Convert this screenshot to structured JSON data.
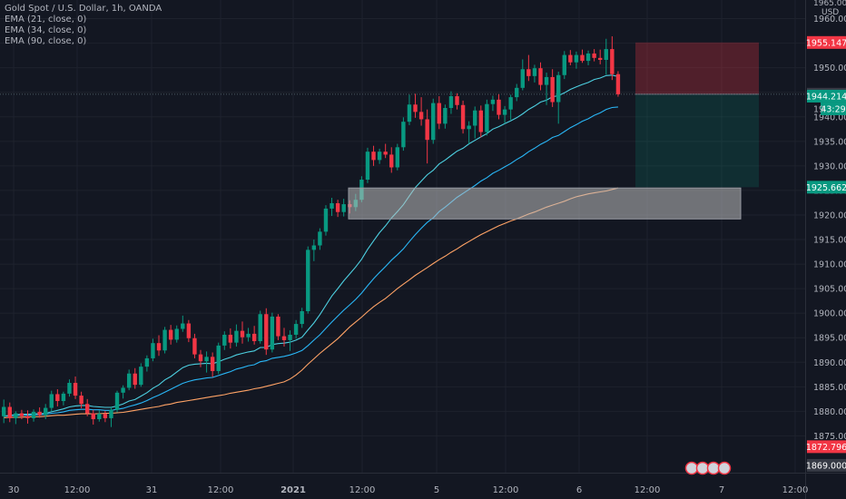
{
  "chart_data": {
    "type": "candlestick",
    "title": "Gold Spot / U.S. Dollar, 1h, OANDA",
    "indicators": [
      "EMA (21, close, 0)",
      "EMA (34, close, 0)",
      "EMA (90, close, 0)"
    ],
    "currency": "USD",
    "ylim": [
      1867.5,
      1963.8
    ],
    "y_ticks": [
      1875,
      1880,
      1885,
      1890,
      1895,
      1900,
      1905,
      1910,
      1915,
      1920,
      1925,
      1930,
      1935,
      1940,
      1945,
      1950,
      1955,
      1960
    ],
    "top_tick_label": "1965.00",
    "x_tick_labels": [
      "30",
      "12:00",
      "31",
      "12:00",
      "2021",
      "12:00",
      "5",
      "12:00",
      "6",
      "12:00",
      "7",
      "12:00"
    ],
    "price_tags": [
      {
        "value": 1955.147,
        "label": "1955.147",
        "color": "#f23645"
      },
      {
        "value": 1944.61,
        "label": "1944.610",
        "color": "#363a45"
      },
      {
        "value": 1944.214,
        "label": "1944.214",
        "color": "#089981"
      },
      {
        "value": 1925.662,
        "label": "1925.662",
        "color": "#089981"
      },
      {
        "value": 1872.796,
        "label": "1872.796",
        "color": "#f23645"
      },
      {
        "value": 1869.0,
        "label": "1869.000",
        "color": "#363a45"
      }
    ],
    "countdown": "43:29",
    "countdown_partial": "19",
    "zone_box": {
      "top": 1925.5,
      "bottom": 1919.2
    },
    "position": {
      "entry": 1944.61,
      "stop": 1955.147,
      "target": 1925.662
    },
    "candles": [
      {
        "o": 1879.0,
        "h": 1882.4,
        "l": 1877.6,
        "c": 1880.9
      },
      {
        "o": 1880.9,
        "h": 1881.8,
        "l": 1877.8,
        "c": 1878.6
      },
      {
        "o": 1878.6,
        "h": 1880.0,
        "l": 1877.4,
        "c": 1879.6
      },
      {
        "o": 1879.6,
        "h": 1880.3,
        "l": 1878.4,
        "c": 1879.0
      },
      {
        "o": 1879.0,
        "h": 1880.2,
        "l": 1877.5,
        "c": 1878.6
      },
      {
        "o": 1878.6,
        "h": 1880.4,
        "l": 1877.9,
        "c": 1879.9
      },
      {
        "o": 1879.9,
        "h": 1880.8,
        "l": 1878.7,
        "c": 1879.2
      },
      {
        "o": 1879.2,
        "h": 1881.5,
        "l": 1878.4,
        "c": 1880.7
      },
      {
        "o": 1880.7,
        "h": 1884.2,
        "l": 1880.0,
        "c": 1883.5
      },
      {
        "o": 1883.5,
        "h": 1884.5,
        "l": 1881.0,
        "c": 1882.1
      },
      {
        "o": 1882.1,
        "h": 1884.0,
        "l": 1881.2,
        "c": 1883.6
      },
      {
        "o": 1883.6,
        "h": 1886.5,
        "l": 1883.0,
        "c": 1885.8
      },
      {
        "o": 1885.8,
        "h": 1887.1,
        "l": 1882.5,
        "c": 1883.2
      },
      {
        "o": 1883.2,
        "h": 1884.0,
        "l": 1880.6,
        "c": 1881.5
      },
      {
        "o": 1881.5,
        "h": 1882.5,
        "l": 1879.0,
        "c": 1879.6
      },
      {
        "o": 1879.6,
        "h": 1880.3,
        "l": 1877.3,
        "c": 1878.4
      },
      {
        "o": 1878.4,
        "h": 1880.2,
        "l": 1877.9,
        "c": 1879.5
      },
      {
        "o": 1879.5,
        "h": 1880.1,
        "l": 1877.8,
        "c": 1878.6
      },
      {
        "o": 1878.6,
        "h": 1881.0,
        "l": 1876.8,
        "c": 1880.3
      },
      {
        "o": 1880.3,
        "h": 1884.2,
        "l": 1879.8,
        "c": 1883.8
      },
      {
        "o": 1883.8,
        "h": 1885.3,
        "l": 1882.6,
        "c": 1884.8
      },
      {
        "o": 1884.8,
        "h": 1888.5,
        "l": 1884.3,
        "c": 1887.7
      },
      {
        "o": 1887.7,
        "h": 1888.8,
        "l": 1884.6,
        "c": 1885.4
      },
      {
        "o": 1885.4,
        "h": 1889.8,
        "l": 1885.0,
        "c": 1889.1
      },
      {
        "o": 1889.1,
        "h": 1891.4,
        "l": 1888.1,
        "c": 1890.8
      },
      {
        "o": 1890.8,
        "h": 1894.8,
        "l": 1890.2,
        "c": 1893.9
      },
      {
        "o": 1893.9,
        "h": 1895.5,
        "l": 1891.3,
        "c": 1892.4
      },
      {
        "o": 1892.4,
        "h": 1897.2,
        "l": 1891.8,
        "c": 1896.6
      },
      {
        "o": 1896.6,
        "h": 1897.6,
        "l": 1893.6,
        "c": 1894.6
      },
      {
        "o": 1894.6,
        "h": 1897.5,
        "l": 1894.0,
        "c": 1896.8
      },
      {
        "o": 1896.8,
        "h": 1899.5,
        "l": 1896.2,
        "c": 1897.9
      },
      {
        "o": 1897.9,
        "h": 1898.6,
        "l": 1894.1,
        "c": 1894.9
      },
      {
        "o": 1894.9,
        "h": 1895.8,
        "l": 1890.8,
        "c": 1891.6
      },
      {
        "o": 1891.6,
        "h": 1892.5,
        "l": 1889.0,
        "c": 1890.2
      },
      {
        "o": 1890.2,
        "h": 1892.2,
        "l": 1887.9,
        "c": 1891.1
      },
      {
        "o": 1891.1,
        "h": 1892.0,
        "l": 1887.0,
        "c": 1888.2
      },
      {
        "o": 1888.2,
        "h": 1894.0,
        "l": 1887.6,
        "c": 1893.4
      },
      {
        "o": 1893.4,
        "h": 1896.3,
        "l": 1892.5,
        "c": 1895.6
      },
      {
        "o": 1895.6,
        "h": 1896.9,
        "l": 1892.8,
        "c": 1894.0
      },
      {
        "o": 1894.0,
        "h": 1897.7,
        "l": 1893.2,
        "c": 1896.4
      },
      {
        "o": 1896.4,
        "h": 1898.3,
        "l": 1893.8,
        "c": 1895.1
      },
      {
        "o": 1895.1,
        "h": 1897.0,
        "l": 1894.2,
        "c": 1895.8
      },
      {
        "o": 1895.8,
        "h": 1897.4,
        "l": 1893.6,
        "c": 1894.3
      },
      {
        "o": 1894.3,
        "h": 1900.5,
        "l": 1893.8,
        "c": 1899.8
      },
      {
        "o": 1899.8,
        "h": 1901.0,
        "l": 1891.5,
        "c": 1892.6
      },
      {
        "o": 1892.6,
        "h": 1900.1,
        "l": 1892.0,
        "c": 1899.3
      },
      {
        "o": 1899.3,
        "h": 1899.8,
        "l": 1894.5,
        "c": 1895.3
      },
      {
        "o": 1895.3,
        "h": 1897.0,
        "l": 1893.2,
        "c": 1894.5
      },
      {
        "o": 1894.5,
        "h": 1896.5,
        "l": 1892.3,
        "c": 1895.6
      },
      {
        "o": 1895.6,
        "h": 1898.6,
        "l": 1894.8,
        "c": 1897.8
      },
      {
        "o": 1897.8,
        "h": 1901.1,
        "l": 1897.0,
        "c": 1900.4
      },
      {
        "o": 1900.4,
        "h": 1913.6,
        "l": 1899.9,
        "c": 1912.9
      },
      {
        "o": 1912.9,
        "h": 1915.0,
        "l": 1910.6,
        "c": 1913.8
      },
      {
        "o": 1913.8,
        "h": 1917.3,
        "l": 1912.9,
        "c": 1916.6
      },
      {
        "o": 1916.6,
        "h": 1922.0,
        "l": 1915.8,
        "c": 1921.3
      },
      {
        "o": 1921.3,
        "h": 1923.5,
        "l": 1919.8,
        "c": 1922.4
      },
      {
        "o": 1922.4,
        "h": 1923.1,
        "l": 1919.6,
        "c": 1920.6
      },
      {
        "o": 1920.6,
        "h": 1923.3,
        "l": 1919.7,
        "c": 1922.2
      },
      {
        "o": 1922.2,
        "h": 1923.0,
        "l": 1920.3,
        "c": 1921.6
      },
      {
        "o": 1921.6,
        "h": 1924.3,
        "l": 1920.8,
        "c": 1923.1
      },
      {
        "o": 1923.1,
        "h": 1927.9,
        "l": 1922.6,
        "c": 1927.2
      },
      {
        "o": 1927.2,
        "h": 1933.7,
        "l": 1926.5,
        "c": 1932.9
      },
      {
        "o": 1932.9,
        "h": 1934.1,
        "l": 1930.0,
        "c": 1931.2
      },
      {
        "o": 1931.2,
        "h": 1933.5,
        "l": 1930.4,
        "c": 1932.9
      },
      {
        "o": 1932.9,
        "h": 1934.5,
        "l": 1931.6,
        "c": 1932.3
      },
      {
        "o": 1932.3,
        "h": 1933.8,
        "l": 1928.6,
        "c": 1929.7
      },
      {
        "o": 1929.7,
        "h": 1934.5,
        "l": 1929.1,
        "c": 1933.8
      },
      {
        "o": 1933.8,
        "h": 1939.9,
        "l": 1933.1,
        "c": 1939.0
      },
      {
        "o": 1939.0,
        "h": 1944.5,
        "l": 1938.3,
        "c": 1942.5
      },
      {
        "o": 1942.5,
        "h": 1944.7,
        "l": 1939.8,
        "c": 1941.0
      },
      {
        "o": 1941.0,
        "h": 1944.0,
        "l": 1938.2,
        "c": 1939.5
      },
      {
        "o": 1939.5,
        "h": 1941.5,
        "l": 1930.5,
        "c": 1935.3
      },
      {
        "o": 1935.3,
        "h": 1943.7,
        "l": 1934.5,
        "c": 1942.8
      },
      {
        "o": 1942.8,
        "h": 1944.2,
        "l": 1937.5,
        "c": 1938.6
      },
      {
        "o": 1938.6,
        "h": 1942.5,
        "l": 1937.6,
        "c": 1941.8
      },
      {
        "o": 1941.8,
        "h": 1945.2,
        "l": 1940.6,
        "c": 1944.2
      },
      {
        "o": 1944.2,
        "h": 1944.8,
        "l": 1941.5,
        "c": 1942.4
      },
      {
        "o": 1942.4,
        "h": 1943.3,
        "l": 1936.6,
        "c": 1937.5
      },
      {
        "o": 1937.5,
        "h": 1939.1,
        "l": 1934.5,
        "c": 1938.2
      },
      {
        "o": 1938.2,
        "h": 1942.1,
        "l": 1935.6,
        "c": 1941.3
      },
      {
        "o": 1941.3,
        "h": 1942.3,
        "l": 1935.8,
        "c": 1936.9
      },
      {
        "o": 1936.9,
        "h": 1943.5,
        "l": 1936.2,
        "c": 1942.6
      },
      {
        "o": 1942.6,
        "h": 1944.3,
        "l": 1941.2,
        "c": 1943.5
      },
      {
        "o": 1943.5,
        "h": 1944.6,
        "l": 1939.5,
        "c": 1940.4
      },
      {
        "o": 1940.4,
        "h": 1942.2,
        "l": 1938.6,
        "c": 1941.5
      },
      {
        "o": 1941.5,
        "h": 1944.5,
        "l": 1939.4,
        "c": 1944.0
      },
      {
        "o": 1944.0,
        "h": 1946.7,
        "l": 1943.2,
        "c": 1945.9
      },
      {
        "o": 1945.9,
        "h": 1951.7,
        "l": 1945.4,
        "c": 1949.7
      },
      {
        "o": 1949.7,
        "h": 1952.6,
        "l": 1947.3,
        "c": 1948.3
      },
      {
        "o": 1948.3,
        "h": 1950.6,
        "l": 1947.0,
        "c": 1949.9
      },
      {
        "o": 1949.9,
        "h": 1951.1,
        "l": 1945.4,
        "c": 1946.5
      },
      {
        "o": 1946.5,
        "h": 1949.0,
        "l": 1942.4,
        "c": 1948.1
      },
      {
        "o": 1948.1,
        "h": 1949.7,
        "l": 1942.0,
        "c": 1943.0
      },
      {
        "o": 1943.0,
        "h": 1949.2,
        "l": 1938.6,
        "c": 1948.5
      },
      {
        "o": 1948.5,
        "h": 1953.4,
        "l": 1947.7,
        "c": 1952.6
      },
      {
        "o": 1952.6,
        "h": 1953.6,
        "l": 1950.5,
        "c": 1951.1
      },
      {
        "o": 1951.1,
        "h": 1953.3,
        "l": 1949.8,
        "c": 1952.6
      },
      {
        "o": 1952.6,
        "h": 1953.7,
        "l": 1951.0,
        "c": 1951.4
      },
      {
        "o": 1951.4,
        "h": 1953.5,
        "l": 1950.5,
        "c": 1952.9
      },
      {
        "o": 1952.9,
        "h": 1953.8,
        "l": 1951.3,
        "c": 1952.0
      },
      {
        "o": 1952.0,
        "h": 1953.7,
        "l": 1950.7,
        "c": 1951.6
      },
      {
        "o": 1951.6,
        "h": 1955.9,
        "l": 1948.6,
        "c": 1953.8
      },
      {
        "o": 1953.8,
        "h": 1956.4,
        "l": 1947.5,
        "c": 1948.7
      },
      {
        "o": 1948.7,
        "h": 1949.3,
        "l": 1944.1,
        "c": 1944.6
      }
    ],
    "ema21": [
      1879.0,
      1879.2,
      1879.3,
      1879.4,
      1879.4,
      1879.5,
      1879.5,
      1879.6,
      1879.9,
      1880.2,
      1880.5,
      1880.9,
      1881.1,
      1881.2,
      1881.2,
      1881.0,
      1880.9,
      1880.8,
      1880.8,
      1881.1,
      1881.5,
      1882.1,
      1882.4,
      1883.1,
      1883.8,
      1884.7,
      1885.4,
      1886.4,
      1887.1,
      1888.0,
      1888.9,
      1889.4,
      1889.6,
      1889.7,
      1889.8,
      1889.7,
      1890.1,
      1890.6,
      1891.0,
      1891.5,
      1891.8,
      1892.1,
      1892.3,
      1893.0,
      1893.0,
      1893.6,
      1893.8,
      1893.9,
      1894.1,
      1894.5,
      1895.1,
      1896.6,
      1898.0,
      1899.7,
      1901.6,
      1903.5,
      1905.0,
      1906.6,
      1908.0,
      1909.4,
      1911.0,
      1913.0,
      1914.7,
      1916.4,
      1917.8,
      1919.4,
      1920.7,
      1922.1,
      1923.9,
      1925.6,
      1926.9,
      1928.2,
      1929.1,
      1930.4,
      1931.2,
      1932.1,
      1933.0,
      1933.6,
      1934.5,
      1935.2,
      1935.9,
      1936.6,
      1937.5,
      1938.0,
      1938.6,
      1939.2,
      1939.8,
      1940.6,
      1941.5,
      1942.2,
      1943.0,
      1943.4,
      1944.1,
      1944.3,
      1944.9,
      1945.6,
      1946.1,
      1946.6,
      1947.0,
      1947.6,
      1947.9,
      1948.4,
      1948.5,
      1948.2
    ],
    "ema34": [
      1879.0,
      1879.1,
      1879.2,
      1879.2,
      1879.2,
      1879.3,
      1879.3,
      1879.4,
      1879.6,
      1879.7,
      1879.9,
      1880.2,
      1880.3,
      1880.4,
      1880.4,
      1880.3,
      1880.3,
      1880.2,
      1880.2,
      1880.4,
      1880.6,
      1881.0,
      1881.3,
      1881.7,
      1882.2,
      1882.8,
      1883.3,
      1883.9,
      1884.5,
      1885.1,
      1885.7,
      1886.1,
      1886.4,
      1886.6,
      1886.8,
      1886.9,
      1887.3,
      1887.7,
      1888.1,
      1888.6,
      1888.9,
      1889.3,
      1889.5,
      1890.1,
      1890.3,
      1890.8,
      1891.0,
      1891.2,
      1891.5,
      1891.9,
      1892.4,
      1893.4,
      1894.5,
      1895.6,
      1896.9,
      1898.2,
      1899.4,
      1900.6,
      1901.7,
      1902.8,
      1904.1,
      1905.6,
      1907.0,
      1908.3,
      1909.5,
      1910.8,
      1911.9,
      1913.1,
      1914.6,
      1916.0,
      1917.3,
      1918.5,
      1919.4,
      1920.7,
      1921.6,
      1922.6,
      1923.6,
      1924.4,
      1925.2,
      1926.0,
      1926.9,
      1927.6,
      1928.5,
      1929.1,
      1929.8,
      1930.5,
      1931.3,
      1932.0,
      1932.9,
      1933.6,
      1934.4,
      1935.0,
      1935.8,
      1936.2,
      1937.0,
      1937.8,
      1938.4,
      1939.1,
      1939.6,
      1940.3,
      1940.8,
      1941.5,
      1941.9,
      1942.0
    ],
    "ema90": [
      1878.7,
      1878.8,
      1878.8,
      1878.8,
      1878.9,
      1878.9,
      1878.9,
      1879.0,
      1879.1,
      1879.2,
      1879.2,
      1879.3,
      1879.4,
      1879.5,
      1879.5,
      1879.5,
      1879.5,
      1879.6,
      1879.6,
      1879.7,
      1879.8,
      1880.0,
      1880.2,
      1880.4,
      1880.6,
      1880.8,
      1881.0,
      1881.3,
      1881.5,
      1881.8,
      1882.0,
      1882.2,
      1882.4,
      1882.6,
      1882.8,
      1883.0,
      1883.2,
      1883.4,
      1883.7,
      1883.9,
      1884.1,
      1884.3,
      1884.6,
      1884.8,
      1885.1,
      1885.4,
      1885.7,
      1886.0,
      1886.6,
      1887.4,
      1888.4,
      1889.6,
      1890.7,
      1891.8,
      1892.8,
      1893.8,
      1894.8,
      1896.0,
      1897.2,
      1898.2,
      1899.2,
      1900.3,
      1901.3,
      1902.2,
      1903.0,
      1904.0,
      1905.0,
      1905.9,
      1906.8,
      1907.7,
      1908.5,
      1909.3,
      1910.1,
      1910.9,
      1911.6,
      1912.4,
      1913.1,
      1913.9,
      1914.6,
      1915.3,
      1916.0,
      1916.6,
      1917.2,
      1917.8,
      1918.3,
      1918.8,
      1919.2,
      1919.7,
      1920.2,
      1920.6,
      1921.1,
      1921.6,
      1922.0,
      1922.4,
      1922.8,
      1923.3,
      1923.7,
      1924.0,
      1924.3,
      1924.5,
      1924.7,
      1924.9,
      1925.2,
      1925.5
    ]
  },
  "colors": {
    "background": "#131722",
    "grid": "#1e222d",
    "axis_text": "#b2b5be",
    "up": "#089981",
    "down": "#f23645",
    "ema21": "#4dd0e1",
    "ema34": "#29b6f6",
    "ema90": "#ffa366",
    "stop_zone": "rgba(242,54,69,0.28)",
    "target_zone": "rgba(8,153,129,0.18)",
    "rect_zone": "rgba(190,190,190,0.55)"
  }
}
